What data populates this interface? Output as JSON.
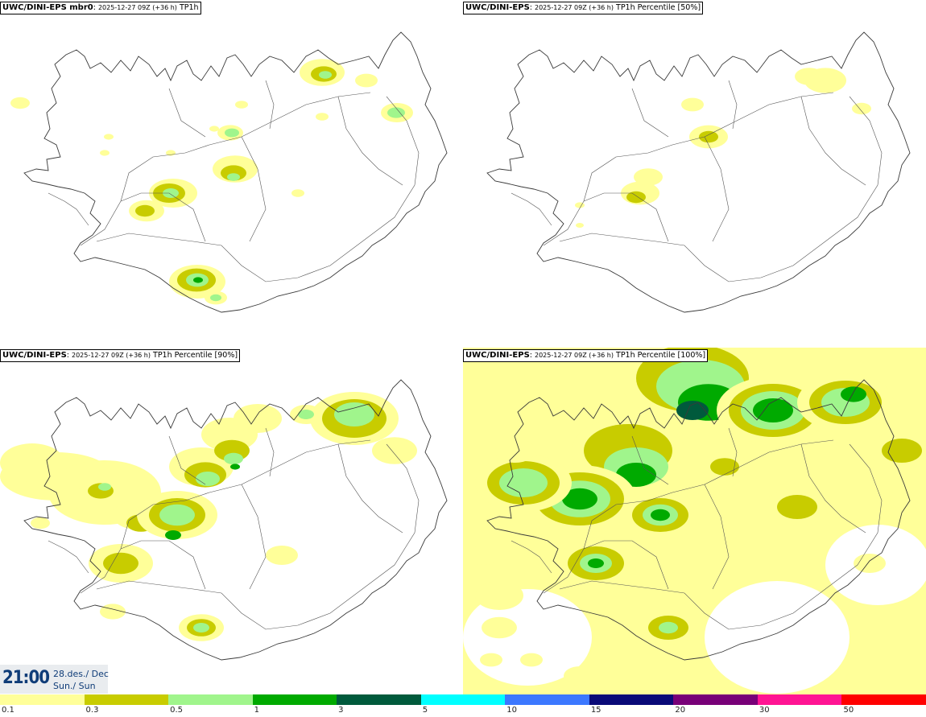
{
  "panels": [
    {
      "model": "UWC/DINI-EPS mbr0",
      "run": "2025-12-27 09Z (+36 h)",
      "field": "TP1h",
      "coverage": "low"
    },
    {
      "model": "UWC/DINI-EPS",
      "run": "2025-12-27 09Z (+36 h)",
      "field": "TP1h Percentile [50%]",
      "coverage": "minimal"
    },
    {
      "model": "UWC/DINI-EPS",
      "run": "2025-12-27 09Z (+36 h)",
      "field": "TP1h Percentile [90%]",
      "coverage": "moderate"
    },
    {
      "model": "UWC/DINI-EPS",
      "run": "2025-12-27 09Z (+36 h)",
      "field": "TP1h Percentile [100%]",
      "coverage": "high"
    }
  ],
  "valid_time": {
    "clock": "21:00",
    "date_line1": "28.des./ Dec",
    "date_line2": "Sun./ Sun"
  },
  "colorbar": {
    "ticks": [
      "0.1",
      "0.3",
      "0.5",
      "1",
      "3",
      "5",
      "10",
      "15",
      "20",
      "30",
      "50"
    ],
    "colors": [
      "#ffff99",
      "#c8cc00",
      "#a0f58c",
      "#00aa00",
      "#005a3c",
      "#00ffff",
      "#3c78ff",
      "#0a0a78",
      "#780078",
      "#ff1493",
      "#ff0000"
    ]
  },
  "map_style": {
    "land_outline": "#3a3a3a",
    "roads": "#555555"
  }
}
